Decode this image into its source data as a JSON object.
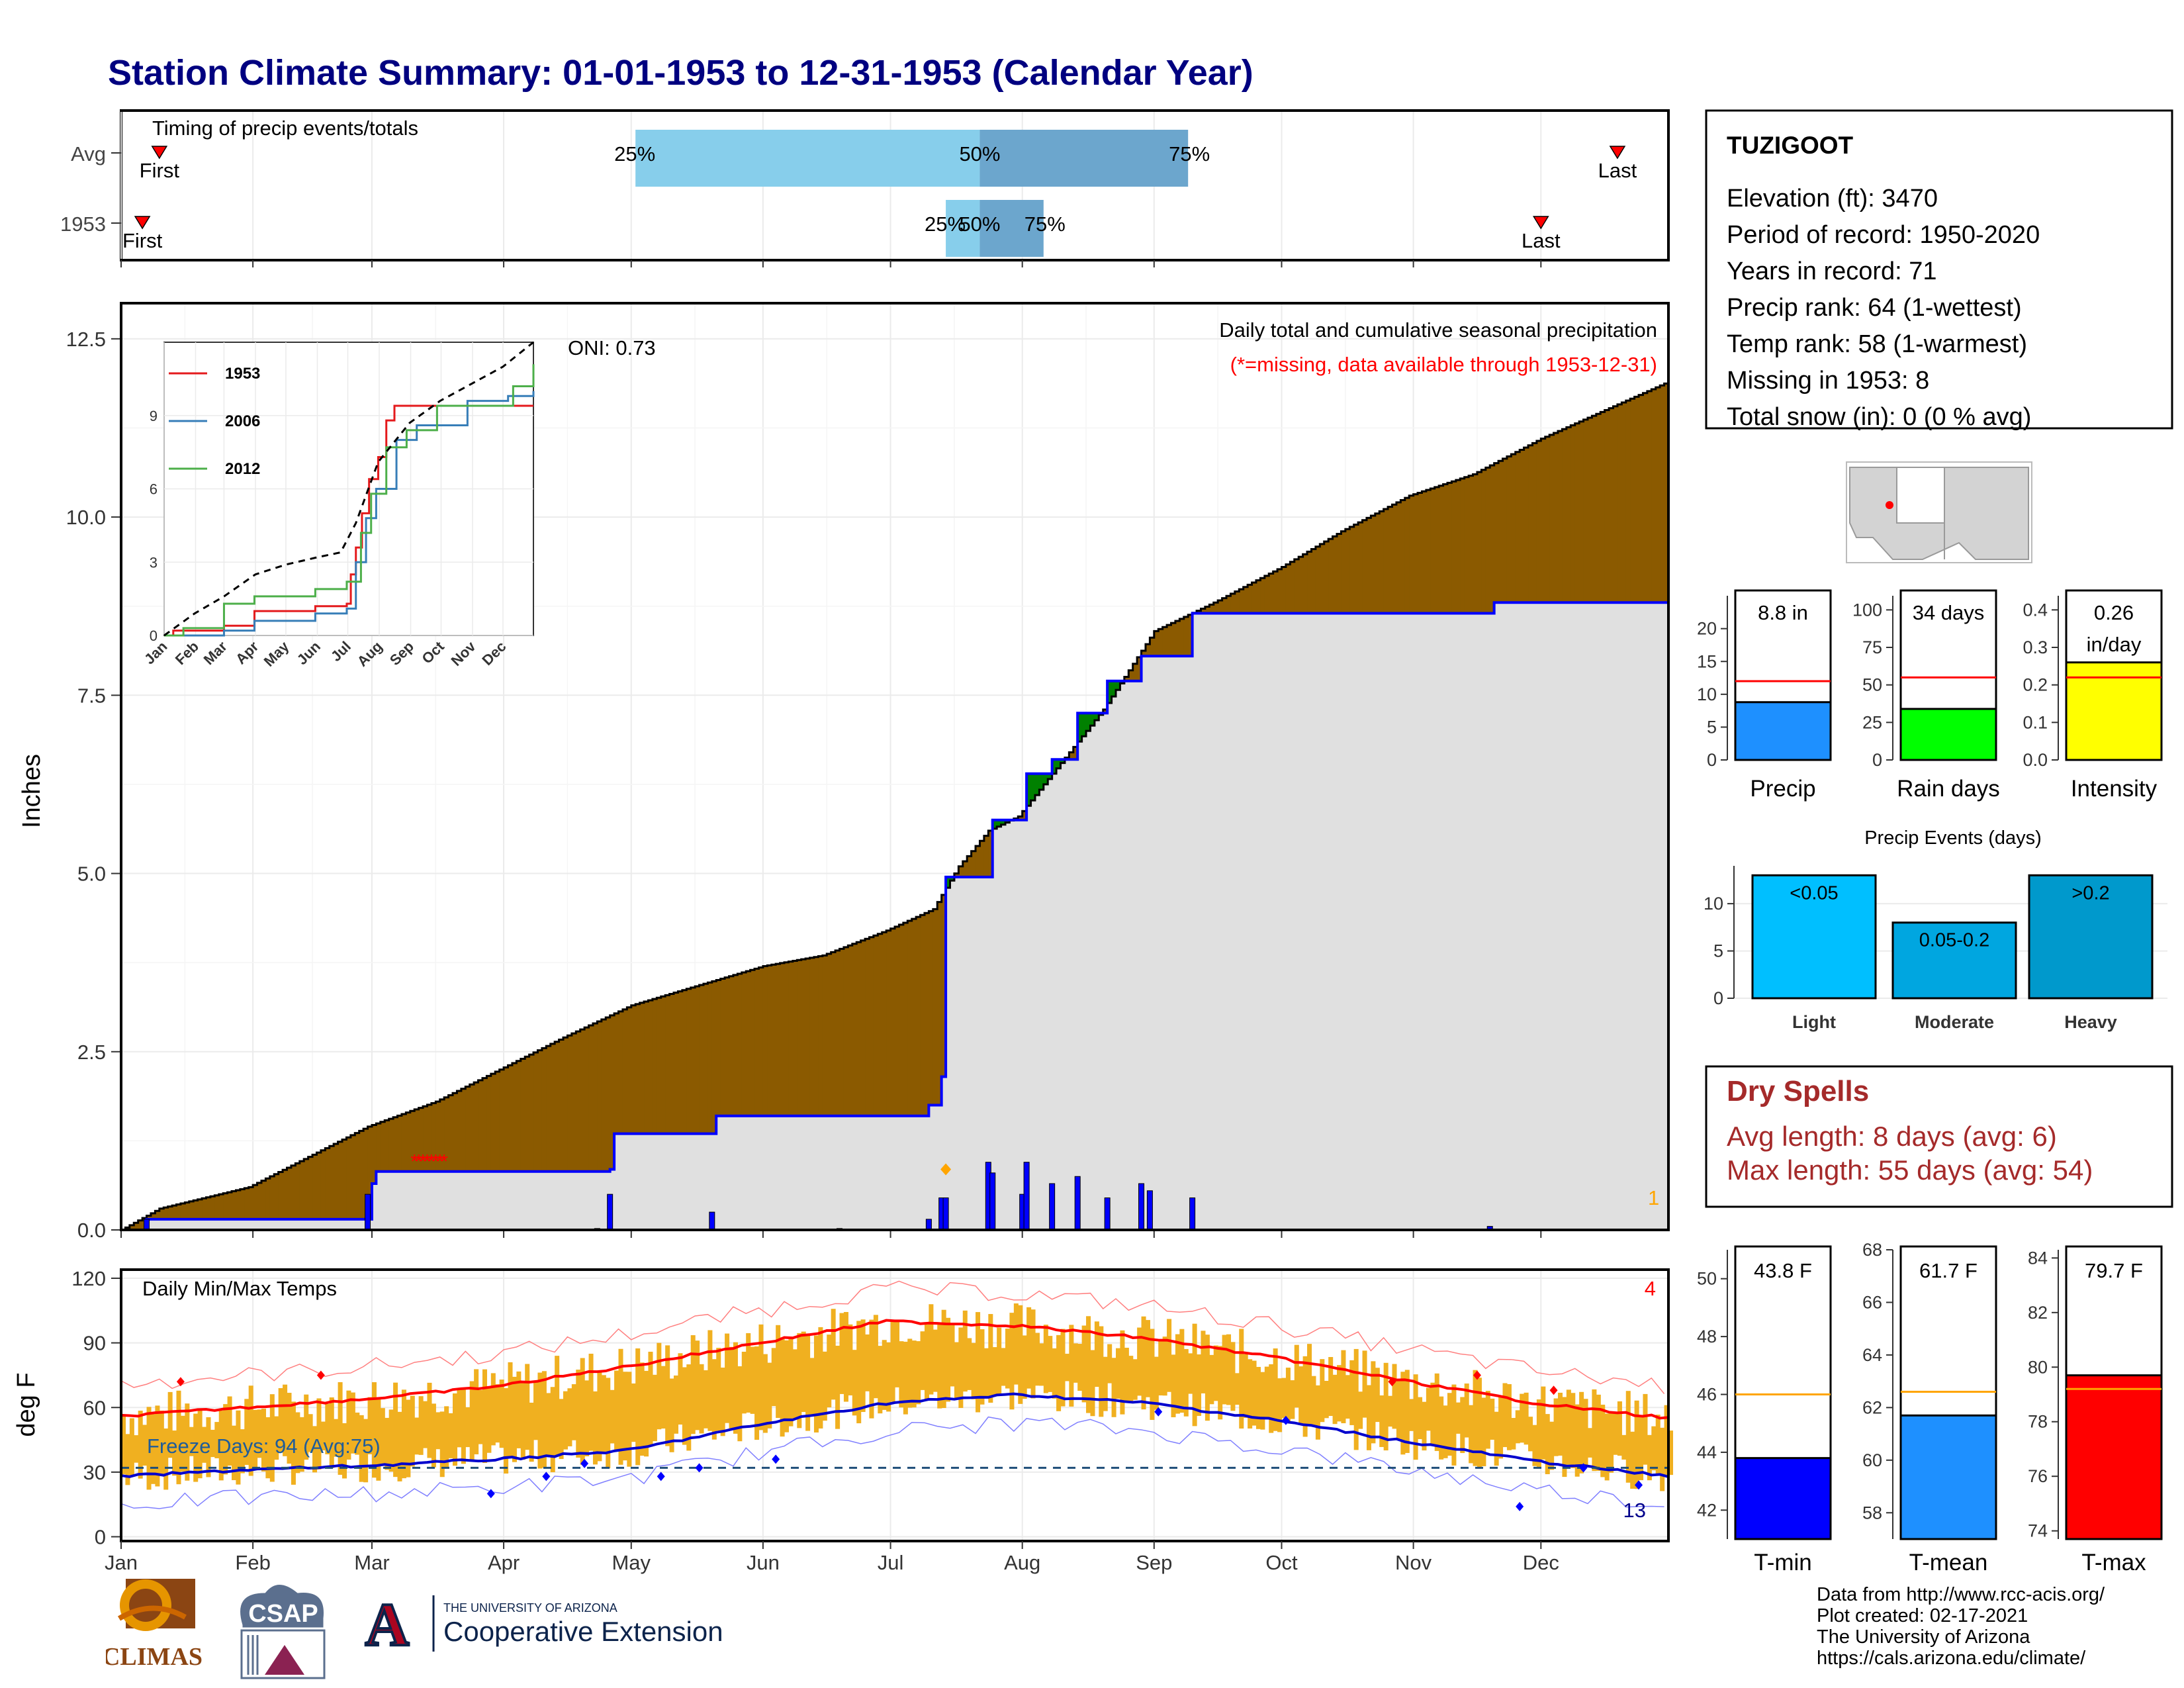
{
  "title": "Station Climate Summary: 01-01-1953 to 12-31-1953 (Calendar Year)",
  "colors": {
    "title": "#000080",
    "brown": "#8B5A00",
    "green": "#008000",
    "blue_line": "#0000FF",
    "grey_fill": "#E0E0E0",
    "light_blue": "#87CEEB",
    "mid_blue": "#6CA6CD",
    "gold": "#F0B020",
    "avg_line": "#FF0000",
    "dry_spell": "#A52A2A"
  },
  "months": [
    "Jan",
    "Feb",
    "Mar",
    "Apr",
    "May",
    "Jun",
    "Jul",
    "Aug",
    "Sep",
    "Oct",
    "Nov",
    "Dec"
  ],
  "timing_panel": {
    "title": "Timing of precip events/totals",
    "rows": [
      {
        "label": "Avg",
        "first_label": "First",
        "last_label": "Last",
        "first_doy": 10,
        "last_doy": 353,
        "q25_doy": 122,
        "q50_doy": 203,
        "q75_doy": 252
      },
      {
        "label": "1953",
        "first_label": "First",
        "last_label": "Last",
        "first_doy": 6,
        "last_doy": 335,
        "q25_doy": 195,
        "q50_doy": 203,
        "q75_doy": 218
      }
    ],
    "q25_label": "25%",
    "q50_label": "50%",
    "q75_label": "75%"
  },
  "precip_panel": {
    "ylabel": "Inches",
    "yticks": [
      "0.0",
      "2.5",
      "5.0",
      "7.5",
      "10.0",
      "12.5"
    ],
    "title": "Daily total and cumulative seasonal precipitation",
    "subtitle": "(*=missing, data available through 1953-12-31)",
    "oni": "ONI: 0.73",
    "count_label": "1",
    "missing_marker": "*"
  },
  "inset": {
    "yticks": [
      "0",
      "3",
      "6",
      "9"
    ],
    "xticks": [
      "Jan",
      "Feb",
      "Mar",
      "Apr",
      "May",
      "Jun",
      "Jul",
      "Aug",
      "Sep",
      "Oct",
      "Nov",
      "Dec"
    ],
    "legend": [
      "1953",
      "2006",
      "2012"
    ]
  },
  "temp_panel": {
    "ylabel": "deg F",
    "title": "Daily Min/Max Temps",
    "yticks": [
      "0",
      "30",
      "60",
      "90",
      "120"
    ],
    "freeze_label": "Freeze Days: 94 (Avg:75)",
    "top_right_count": "4",
    "bottom_right_count": "13"
  },
  "station": {
    "name": "TUZIGOOT",
    "lines": [
      "Elevation (ft): 3470",
      "Period of record: 1950-2020",
      "Years in record: 71",
      "Precip rank: 64 (1-wettest)",
      "Temp rank: 58 (1-warmest)",
      "Missing in 1953: 8",
      "Total snow (in): 0 (0 % avg)"
    ]
  },
  "small_bars": [
    {
      "name": "Precip",
      "label": "8.8 in",
      "value": 8.8,
      "avg": 12,
      "ymax": 24,
      "ticks": [
        "0",
        "5",
        "10",
        "15",
        "20"
      ],
      "tick_values": [
        0,
        5,
        10,
        15,
        20
      ],
      "color": "#1E90FF"
    },
    {
      "name": "Rain days",
      "label": "34 days",
      "value": 34,
      "avg": 55,
      "ymax": 105,
      "ticks": [
        "0",
        "25",
        "50",
        "75",
        "100"
      ],
      "tick_values": [
        0,
        25,
        50,
        75,
        100
      ],
      "color": "#00FF00"
    },
    {
      "name": "Intensity",
      "label": "0.26 in/day",
      "label_lines": [
        "0.26",
        "in/day"
      ],
      "value": 0.26,
      "avg": 0.22,
      "ymax": 0.42,
      "ticks": [
        "0.0",
        "0.1",
        "0.2",
        "0.3",
        "0.4"
      ],
      "tick_values": [
        0,
        0.1,
        0.2,
        0.3,
        0.4
      ],
      "color": "#FFFF00"
    }
  ],
  "events": {
    "title": "Precip Events (days)",
    "ticks": [
      "0",
      "5",
      "10"
    ],
    "bars": [
      {
        "name": "Light",
        "label": "<0.05",
        "value": 13,
        "color": "#00BFFF"
      },
      {
        "name": "Moderate",
        "label": "0.05-0.2",
        "value": 8,
        "color": "#00A6E0"
      },
      {
        "name": "Heavy",
        "label": ">0.2",
        "value": 13,
        "color": "#0099CC"
      }
    ]
  },
  "dry_spells": {
    "title": "Dry Spells",
    "avg_line": "Avg length: 8 days (avg: 6)",
    "max_line": "Max length: 55 days (avg: 54)"
  },
  "temp_bars": [
    {
      "name": "T-min",
      "label": "43.8 F",
      "value": 43.8,
      "avg": 46,
      "ymin": 41,
      "ymax": 51,
      "ticks": [
        "42",
        "44",
        "46",
        "48",
        "50"
      ],
      "tick_values": [
        42,
        44,
        46,
        48,
        50
      ],
      "color": "#0000FF"
    },
    {
      "name": "T-mean",
      "label": "61.7 F",
      "value": 61.7,
      "avg": 62.6,
      "ymin": 57,
      "ymax": 68,
      "ticks": [
        "58",
        "60",
        "62",
        "64",
        "66",
        "68"
      ],
      "tick_values": [
        58,
        60,
        62,
        64,
        66,
        68
      ],
      "color": "#1E90FF"
    },
    {
      "name": "T-max",
      "label": "79.7 F",
      "value": 79.7,
      "avg": 79.2,
      "ymin": 73.7,
      "ymax": 84.3,
      "ticks": [
        "74",
        "76",
        "78",
        "80",
        "82",
        "84"
      ],
      "tick_values": [
        74,
        76,
        78,
        80,
        82,
        84
      ],
      "color": "#FF0000"
    }
  ],
  "credits": [
    "Data from http://www.rcc-acis.org/",
    "Plot created: 02-17-2021",
    "The University of Arizona",
    "https://cals.arizona.edu/climate/"
  ],
  "logos": {
    "climas": "CLIMAS",
    "csap": "CSAP",
    "ua_small": "THE UNIVERSITY OF ARIZONA",
    "ua_big": "Cooperative Extension",
    "ua_letter": "A"
  },
  "chart_data": [
    {
      "type": "area",
      "title": "Daily total and cumulative seasonal precipitation",
      "ylabel": "Inches",
      "ylim": [
        0,
        13
      ],
      "x_units": "day of year",
      "cumulative_1953": [
        [
          1,
          0.0
        ],
        [
          10,
          0.3
        ],
        [
          31,
          0.6
        ],
        [
          59,
          1.45
        ],
        [
          75,
          1.8
        ],
        [
          90,
          2.25
        ],
        [
          105,
          2.7
        ],
        [
          121,
          3.15
        ],
        [
          135,
          3.4
        ],
        [
          152,
          3.7
        ],
        [
          166,
          3.85
        ],
        [
          181,
          4.2
        ],
        [
          192,
          4.5
        ],
        [
          198,
          5.1
        ],
        [
          205,
          5.6
        ],
        [
          212,
          5.8
        ],
        [
          220,
          6.4
        ],
        [
          232,
          7.3
        ],
        [
          244,
          8.4
        ],
        [
          258,
          8.8
        ],
        [
          274,
          9.3
        ],
        [
          288,
          9.8
        ],
        [
          304,
          10.3
        ],
        [
          319,
          10.6
        ],
        [
          335,
          11.1
        ],
        [
          350,
          11.5
        ],
        [
          365,
          11.9
        ]
      ],
      "cumulative_avg": [
        [
          1,
          0.0
        ],
        [
          7,
          0.15
        ],
        [
          59,
          0.15
        ],
        [
          60,
          0.65
        ],
        [
          61,
          0.82
        ],
        [
          116,
          0.85
        ],
        [
          117,
          1.35
        ],
        [
          140,
          1.35
        ],
        [
          141,
          1.6
        ],
        [
          190,
          1.6
        ],
        [
          191,
          1.75
        ],
        [
          194,
          2.15
        ],
        [
          195,
          4.95
        ],
        [
          205,
          4.95
        ],
        [
          206,
          5.75
        ],
        [
          213,
          5.75
        ],
        [
          214,
          6.4
        ],
        [
          219,
          6.4
        ],
        [
          220,
          6.6
        ],
        [
          225,
          6.6
        ],
        [
          226,
          7.25
        ],
        [
          232,
          7.25
        ],
        [
          233,
          7.7
        ],
        [
          240,
          7.7
        ],
        [
          241,
          8.05
        ],
        [
          252,
          8.05
        ],
        [
          253,
          8.65
        ],
        [
          323,
          8.65
        ],
        [
          324,
          8.8
        ],
        [
          365,
          8.8
        ]
      ],
      "daily_precip": [
        [
          7,
          0.15
        ],
        [
          59,
          0.5
        ],
        [
          116,
          0.5
        ],
        [
          140,
          0.25
        ],
        [
          191,
          0.15
        ],
        [
          194,
          0.45
        ],
        [
          195,
          0.45
        ],
        [
          205,
          0.95
        ],
        [
          206,
          0.8
        ],
        [
          213,
          0.5
        ],
        [
          214,
          0.95
        ],
        [
          220,
          0.65
        ],
        [
          226,
          0.75
        ],
        [
          233,
          0.45
        ],
        [
          241,
          0.65
        ],
        [
          243,
          0.55
        ],
        [
          253,
          0.45
        ],
        [
          323,
          0.05
        ],
        [
          113,
          0.02
        ],
        [
          170,
          0.02
        ]
      ],
      "missing_days": [
        70,
        71,
        72,
        73,
        74,
        75,
        76,
        77
      ]
    },
    {
      "type": "line",
      "title": "Daily Min/Max Temps",
      "ylabel": "deg F",
      "ylim": [
        0,
        120
      ],
      "smoothed_max": [
        [
          1,
          56
        ],
        [
          30,
          60
        ],
        [
          59,
          64
        ],
        [
          90,
          70
        ],
        [
          120,
          79
        ],
        [
          151,
          90
        ],
        [
          181,
          100
        ],
        [
          212,
          98
        ],
        [
          243,
          92
        ],
        [
          273,
          83
        ],
        [
          304,
          72
        ],
        [
          334,
          62
        ],
        [
          365,
          55
        ]
      ],
      "smoothed_min": [
        [
          1,
          28
        ],
        [
          30,
          31
        ],
        [
          59,
          33
        ],
        [
          90,
          36
        ],
        [
          120,
          40
        ],
        [
          151,
          52
        ],
        [
          181,
          62
        ],
        [
          212,
          66
        ],
        [
          243,
          62
        ],
        [
          273,
          54
        ],
        [
          304,
          44
        ],
        [
          334,
          35
        ],
        [
          365,
          28
        ]
      ],
      "freeze_line": 32,
      "freeze_days": 94,
      "freeze_days_avg": 75
    },
    {
      "type": "bar",
      "categories": [
        "Precip",
        "Rain days",
        "Intensity"
      ],
      "values": [
        8.8,
        34,
        0.26
      ]
    },
    {
      "type": "bar",
      "title": "Precip Events (days)",
      "categories": [
        "Light",
        "Moderate",
        "Heavy"
      ],
      "values": [
        13,
        8,
        13
      ]
    },
    {
      "type": "bar",
      "categories": [
        "T-min",
        "T-mean",
        "T-max"
      ],
      "values": [
        43.8,
        61.7,
        79.7
      ]
    }
  ]
}
